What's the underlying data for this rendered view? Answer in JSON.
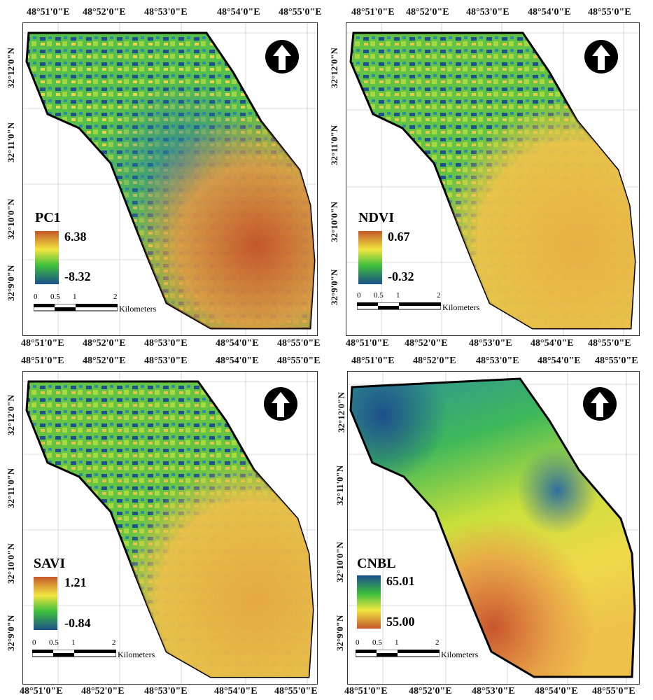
{
  "x_ticks": [
    "48°51'0\"E",
    "48°52'0\"E",
    "48°53'0\"E",
    "48°54'0\"E",
    "48°55'0\"E"
  ],
  "y_ticks": [
    "32°12'0\"N",
    "32°11'0\"N",
    "32°10'0\"N",
    "32°9'0\"N"
  ],
  "scale": {
    "labels": [
      "0",
      "0.5",
      "1",
      "2"
    ],
    "unit": "Kilometers"
  },
  "panels": [
    {
      "title": "PC1",
      "max": "6.38",
      "min": "-8.32",
      "ramp": "orange-top"
    },
    {
      "title": "NDVI",
      "max": "0.67",
      "min": "-0.32",
      "ramp": "orange-top"
    },
    {
      "title": "SAVI",
      "max": "1.21",
      "min": "-0.84",
      "ramp": "orange-top"
    },
    {
      "title": "CNBL",
      "max": "65.01",
      "min": "55.00",
      "ramp": "blue-top"
    }
  ],
  "colors": {
    "high": "#c5582a",
    "mid_yellow": "#f2e640",
    "mid_green": "#3dbf3d",
    "low": "#1c4f8c",
    "boundary": "#000000"
  }
}
